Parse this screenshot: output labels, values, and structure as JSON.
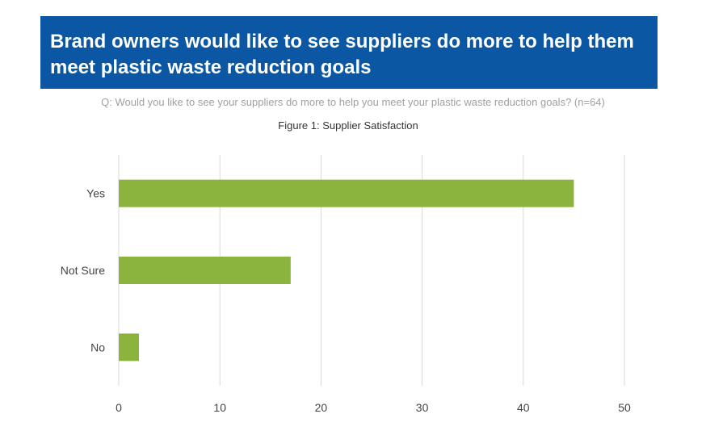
{
  "header": {
    "title": "Brand owners would like to see suppliers do more to help them meet plastic waste reduction goals",
    "question": "Q: Would you like to see your suppliers do more to help you meet your plastic waste reduction goals? (n=64)"
  },
  "colors": {
    "banner": "#0b57a4",
    "bar": "#8bb43f",
    "grid": "#d9d9d9"
  },
  "chart_data": {
    "type": "bar",
    "orientation": "horizontal",
    "title": "Figure 1: Supplier Satisfaction",
    "categories": [
      "Yes",
      "Not Sure",
      "No"
    ],
    "values": [
      45,
      17,
      2
    ],
    "xlim": [
      0,
      50
    ],
    "ticks": [
      0,
      10,
      20,
      30,
      40,
      50
    ],
    "grid": true
  }
}
